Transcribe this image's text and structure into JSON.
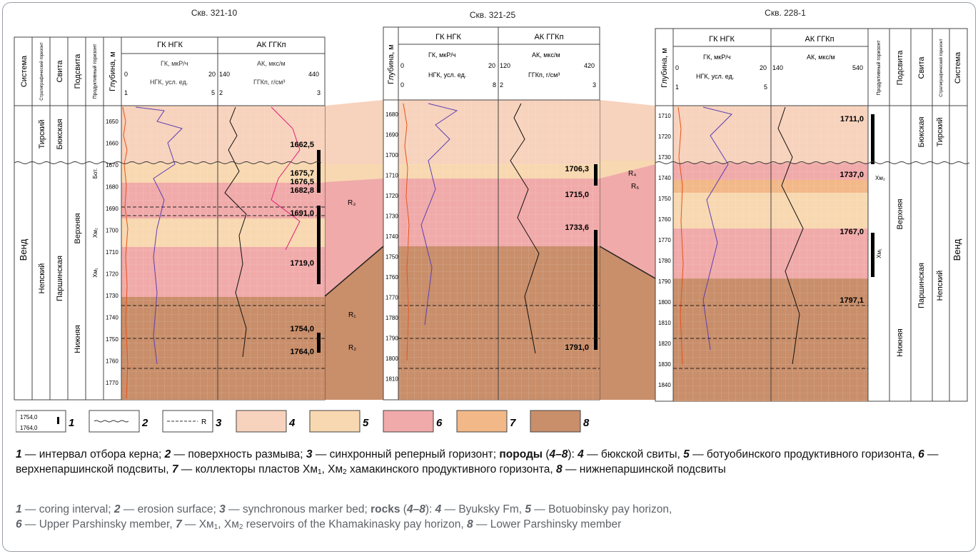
{
  "wells": [
    {
      "name": "Скв. 321-10",
      "depths": [
        "1650",
        "1660",
        "1670",
        "1680",
        "1690",
        "1700",
        "1710",
        "1720",
        "1730",
        "1740",
        "1750",
        "1760",
        "1770"
      ],
      "cores": [
        "1662,5",
        "1675,7",
        "1676,5",
        "1682,8",
        "1691,0",
        "1719,0",
        "1754,0",
        "1764,0"
      ]
    },
    {
      "name": "Скв. 321-25",
      "depths": [
        "1680",
        "1690",
        "1700",
        "1710",
        "1720",
        "1730",
        "1740",
        "1750",
        "1760",
        "1770",
        "1780",
        "1790",
        "1800",
        "1810"
      ],
      "cores": [
        "1706,3",
        "1715,0",
        "1733,6",
        "1791,0"
      ]
    },
    {
      "name": "Скв. 228-1",
      "depths": [
        "1710",
        "1720",
        "1730",
        "1740",
        "1750",
        "1760",
        "1770",
        "1780",
        "1790",
        "1800",
        "1810",
        "1820",
        "1830",
        "1840"
      ],
      "cores": [
        "1711,0",
        "1737,0",
        "1767,0",
        "1797,1"
      ]
    }
  ],
  "headers": {
    "sistema": "Система",
    "strat": "Стратиграфический горизонт",
    "svita": "Свита",
    "podsvita": "Подсвита",
    "prod": "Продуктивный горизонт",
    "depth": "Глубина, м",
    "gk_ngk": "ГК НГК",
    "ak_ggk": "АК ГГКп",
    "gk": "ГК, мкР/ч",
    "ngk": "НГК, усл. ед.",
    "ak": "АК, мкс/м",
    "ggk": "ГГКп, г/см³",
    "well1_scales": {
      "gk": [
        "0",
        "20"
      ],
      "ngk": [
        "1",
        "5"
      ],
      "ak": [
        "140",
        "440"
      ],
      "ggk": [
        "2",
        "3"
      ]
    },
    "well2_scales": {
      "gk": [
        "0",
        "20"
      ],
      "ngk": [
        "0",
        "8"
      ],
      "ak": [
        "120",
        "420"
      ],
      "ggk": [
        "2",
        "3"
      ]
    },
    "well3_scales": {
      "gk": [
        "0",
        "20"
      ],
      "ngk": [
        "1",
        "5"
      ],
      "ak": [
        "140",
        "540"
      ]
    }
  },
  "strat": {
    "vend": "Венд",
    "tirsky": "Тирский",
    "nepsky": "Непский",
    "byuk": "Бюкская",
    "parsh": "Паршинская",
    "verkh": "Верхняя",
    "nizh": "Нижняя",
    "bot": "Бот.",
    "hm1": "Хм₁",
    "hm2": "Хм₂",
    "markers": [
      "R₁",
      "R₂",
      "R₃",
      "R₄",
      "R₅"
    ]
  },
  "legend": {
    "items": [
      "1",
      "2",
      "3",
      "4",
      "5",
      "6",
      "7",
      "8"
    ],
    "sample_top": "1754,0",
    "sample_bottom": "1764,0",
    "sample_r": "R",
    "colors": {
      "byuk": "#f7d2bc",
      "botuob": "#f8d8b0",
      "upper": "#f0aaa9",
      "reservoir": "#f2b888",
      "lower": "#c98e6a"
    }
  },
  "caption": {
    "ru": {
      "n1": "1",
      "t1": " — интервал отбора керна; ",
      "n2": "2",
      "t2": " — поверхность размыва; ",
      "n3": "3",
      "t3": " — синхронный реперный горизонт; ",
      "rocks": "породы",
      "r1": " (",
      "range": "4–8",
      "r2": "): ",
      "n4": "4",
      "t4": " — бюкской свиты, ",
      "n5": "5",
      "t5": " — ботуобинского продуктивного горизонта, ",
      "n6": "6",
      "t6": " — верхнепаршинской подсвиты, ",
      "n7": "7",
      "t7a": " — коллекторы пластов Хм",
      "s1": "1",
      "t7b": ", Хм",
      "s2": "2",
      "t7c": " хамакинского продуктивного горизонта, ",
      "n8": "8",
      "t8": " — нижнепаршинской подсвиты"
    },
    "en": {
      "n1": "1",
      "t1": " — coring interval; ",
      "n2": "2",
      "t2": " — erosion surface; ",
      "n3": "3",
      "t3": " — synchronous marker bed; ",
      "rocks": "rocks",
      "r1": " (",
      "range": "4–8",
      "r2": "): ",
      "n4": "4",
      "t4": " — Byuksky Fm, ",
      "n5": "5",
      "t5": " — Botuobinsky pay horizon,",
      "n6": "6",
      "t6": " — Upper Parshinsky member, ",
      "n7": "7",
      "t7a": " — Хм",
      "s1": "1",
      "t7b": ", Хм",
      "s2": "2",
      "t7c": " reservoirs of the Khamakinasky pay horizon, ",
      "n8": "8",
      "t8": " — Lower Parshinsky member"
    }
  }
}
